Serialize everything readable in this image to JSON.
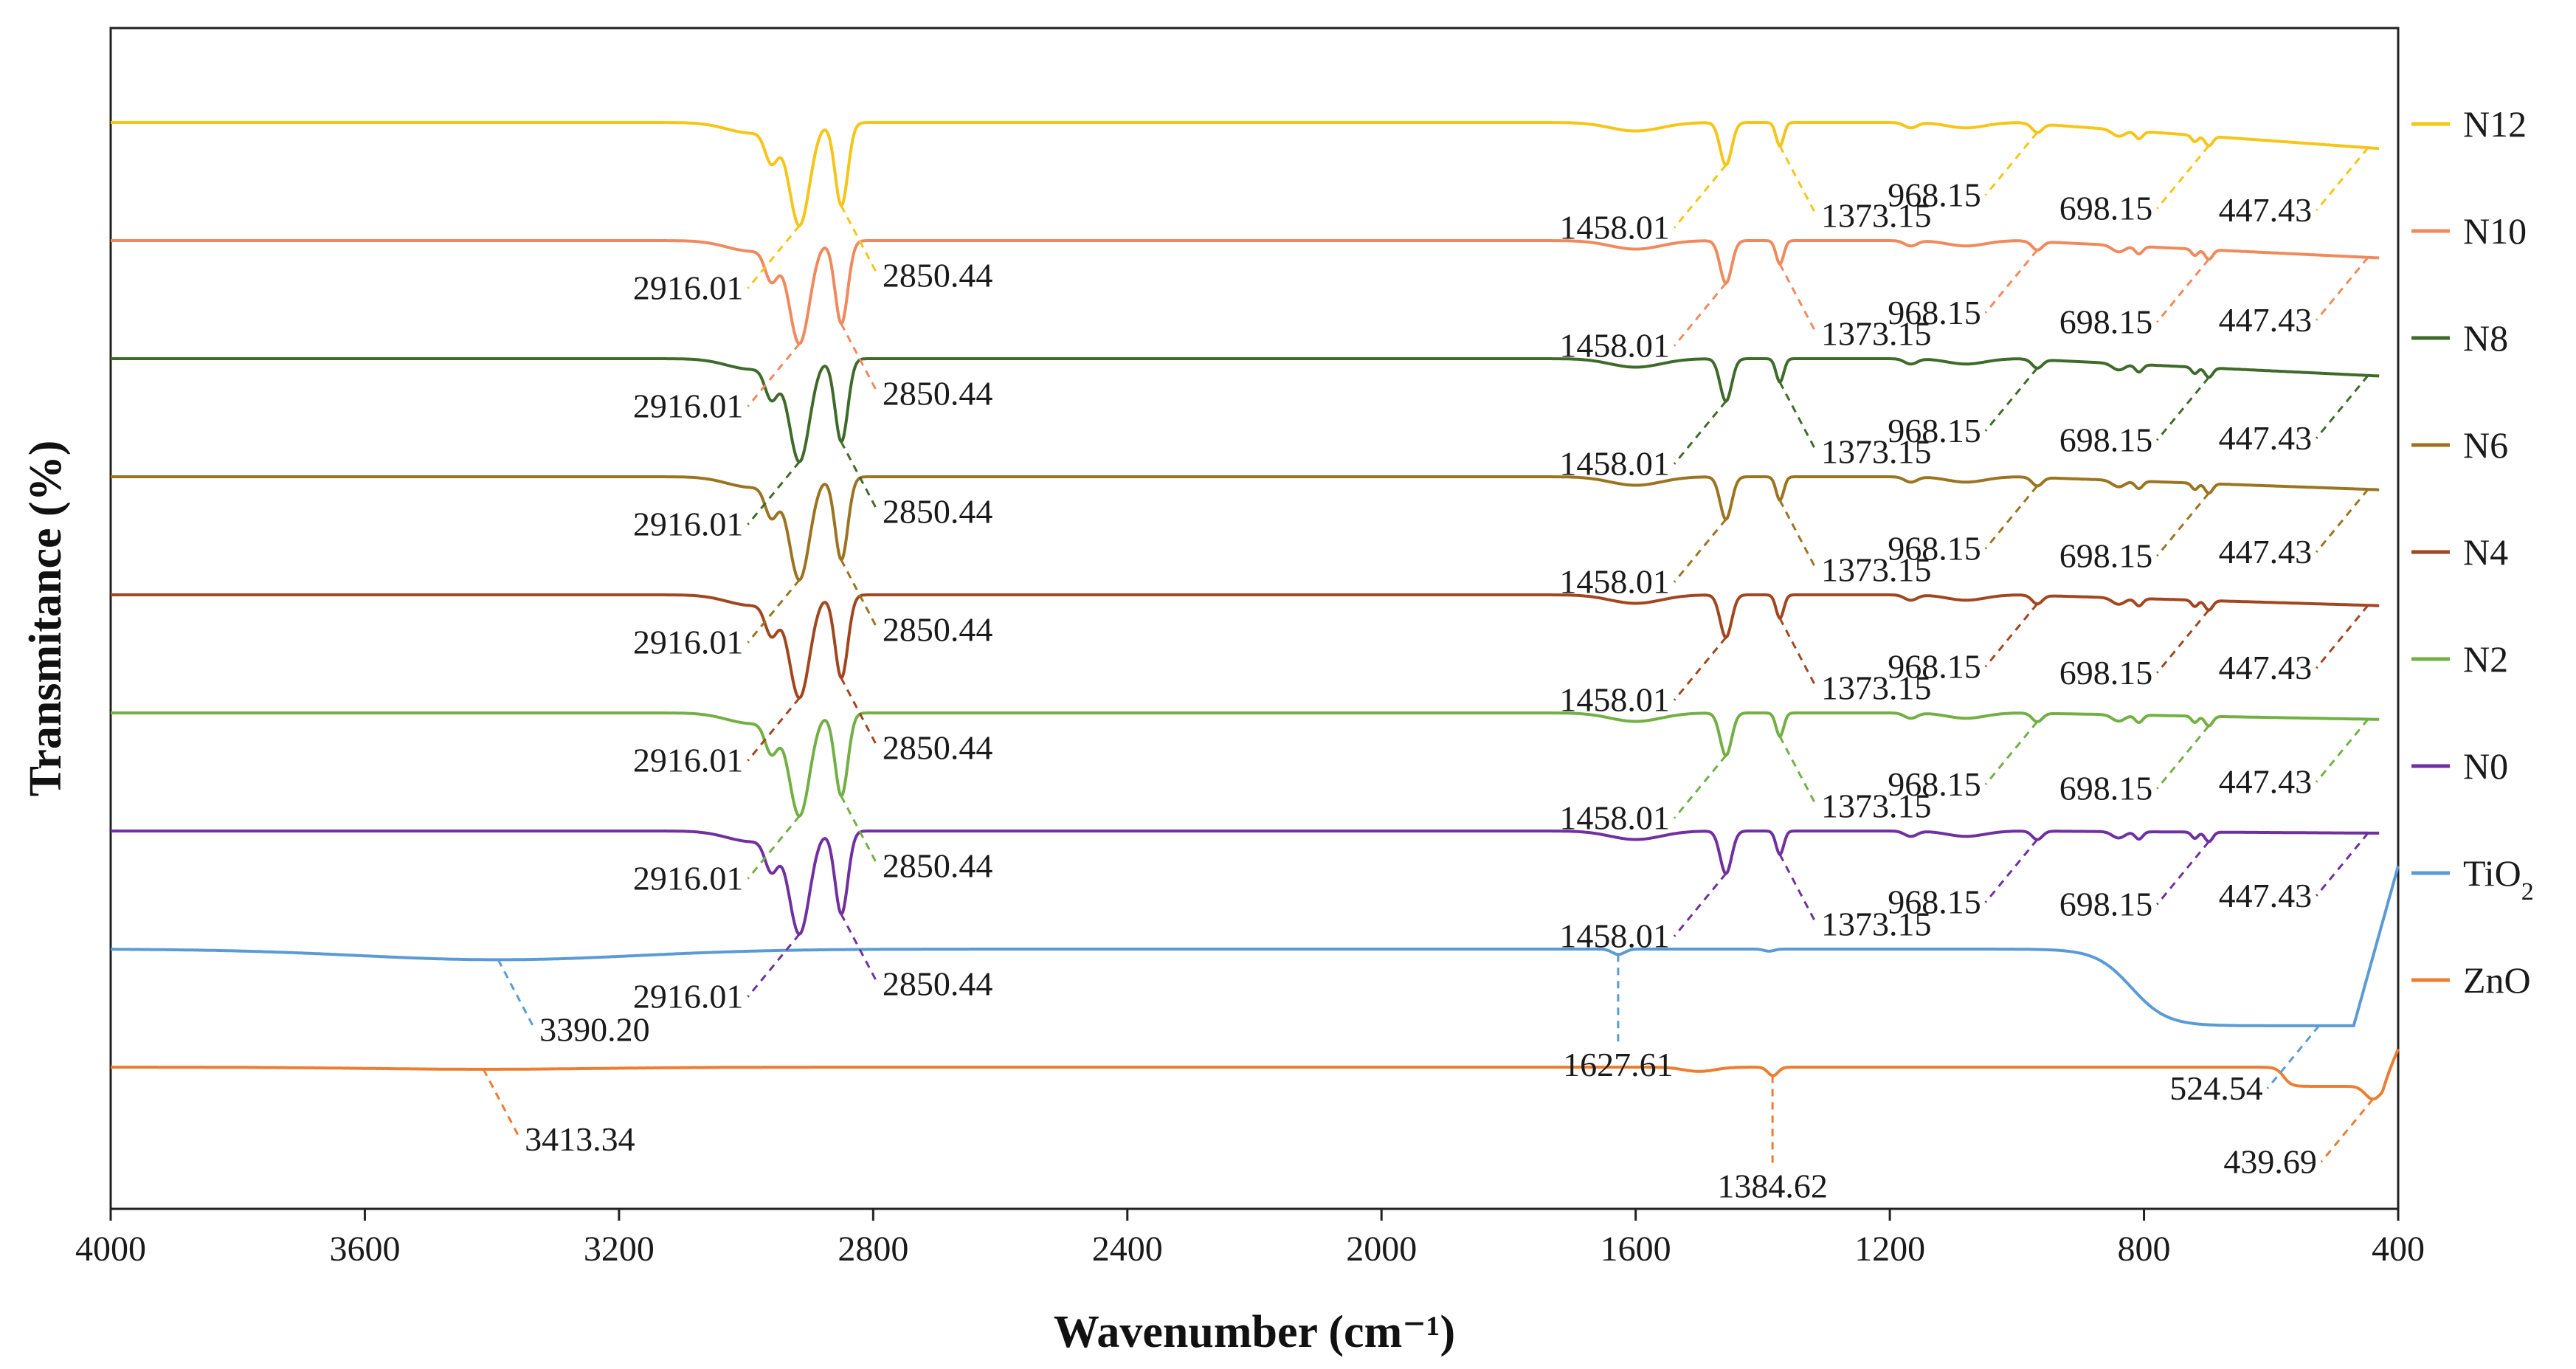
{
  "chart_data": {
    "type": "line",
    "title": "",
    "xlabel": "Wavenumber (cm⁻¹)",
    "ylabel": "Transmitance  (%)",
    "xlim": [
      4000,
      400
    ],
    "x_ticks": [
      "4000",
      "3600",
      "3200",
      "2800",
      "2400",
      "2000",
      "1600",
      "1200",
      "800",
      "400"
    ],
    "x_tick_values": [
      4000,
      3600,
      3200,
      2800,
      2400,
      2000,
      1600,
      1200,
      800,
      400
    ],
    "legend_position": "right",
    "series": [
      {
        "name": "N12",
        "color": "#F5C518",
        "offset": 9.2,
        "peaks": [
          {
            "label": "2916.01",
            "x": 2916.01,
            "side": "left"
          },
          {
            "label": "2850.44",
            "x": 2850.44,
            "side": "right"
          },
          {
            "label": "1458.01",
            "x": 1458.01,
            "side": "left"
          },
          {
            "label": "1373.15",
            "x": 1373.15,
            "side": "right"
          },
          {
            "label": "968.15",
            "x": 968.15,
            "side": "left"
          },
          {
            "label": "698.15",
            "x": 698.15,
            "side": "left"
          },
          {
            "label": "447.43",
            "x": 447.43,
            "side": "left"
          }
        ]
      },
      {
        "name": "N10",
        "color": "#F08A5D",
        "offset": 8.2,
        "peaks": [
          {
            "label": "2916.01",
            "x": 2916.01,
            "side": "left"
          },
          {
            "label": "2850.44",
            "x": 2850.44,
            "side": "right"
          },
          {
            "label": "1458.01",
            "x": 1458.01,
            "side": "left"
          },
          {
            "label": "1373.15",
            "x": 1373.15,
            "side": "right"
          },
          {
            "label": "968.15",
            "x": 968.15,
            "side": "left"
          },
          {
            "label": "698.15",
            "x": 698.15,
            "side": "left"
          },
          {
            "label": "447.43",
            "x": 447.43,
            "side": "left"
          }
        ]
      },
      {
        "name": "N8",
        "color": "#3F6B2A",
        "offset": 7.2,
        "peaks": [
          {
            "label": "2916.01",
            "x": 2916.01,
            "side": "left"
          },
          {
            "label": "2850.44",
            "x": 2850.44,
            "side": "right"
          },
          {
            "label": "1458.01",
            "x": 1458.01,
            "side": "left"
          },
          {
            "label": "1373.15",
            "x": 1373.15,
            "side": "right"
          },
          {
            "label": "968.15",
            "x": 968.15,
            "side": "left"
          },
          {
            "label": "698.15",
            "x": 698.15,
            "side": "left"
          },
          {
            "label": "447.43",
            "x": 447.43,
            "side": "left"
          }
        ]
      },
      {
        "name": "N6",
        "color": "#9B7420",
        "offset": 6.2,
        "peaks": [
          {
            "label": "2916.01",
            "x": 2916.01,
            "side": "left"
          },
          {
            "label": "2850.44",
            "x": 2850.44,
            "side": "right"
          },
          {
            "label": "1458.01",
            "x": 1458.01,
            "side": "left"
          },
          {
            "label": "1373.15",
            "x": 1373.15,
            "side": "right"
          },
          {
            "label": "968.15",
            "x": 968.15,
            "side": "left"
          },
          {
            "label": "698.15",
            "x": 698.15,
            "side": "left"
          },
          {
            "label": "447.43",
            "x": 447.43,
            "side": "left"
          }
        ]
      },
      {
        "name": "N4",
        "color": "#A2461F",
        "offset": 5.2,
        "peaks": [
          {
            "label": "2916.01",
            "x": 2916.01,
            "side": "left"
          },
          {
            "label": "2850.44",
            "x": 2850.44,
            "side": "right"
          },
          {
            "label": "1458.01",
            "x": 1458.01,
            "side": "left"
          },
          {
            "label": "1373.15",
            "x": 1373.15,
            "side": "right"
          },
          {
            "label": "968.15",
            "x": 968.15,
            "side": "left"
          },
          {
            "label": "698.15",
            "x": 698.15,
            "side": "left"
          },
          {
            "label": "447.43",
            "x": 447.43,
            "side": "left"
          }
        ]
      },
      {
        "name": "N2",
        "color": "#72B043",
        "offset": 4.2,
        "peaks": [
          {
            "label": "2916.01",
            "x": 2916.01,
            "side": "left"
          },
          {
            "label": "2850.44",
            "x": 2850.44,
            "side": "right"
          },
          {
            "label": "1458.01",
            "x": 1458.01,
            "side": "left"
          },
          {
            "label": "1373.15",
            "x": 1373.15,
            "side": "right"
          },
          {
            "label": "968.15",
            "x": 968.15,
            "side": "left"
          },
          {
            "label": "698.15",
            "x": 698.15,
            "side": "left"
          },
          {
            "label": "447.43",
            "x": 447.43,
            "side": "left"
          }
        ]
      },
      {
        "name": "N0",
        "color": "#7030A0",
        "offset": 3.2,
        "peaks": [
          {
            "label": "2916.01",
            "x": 2916.01,
            "side": "left"
          },
          {
            "label": "2850.44",
            "x": 2850.44,
            "side": "right"
          },
          {
            "label": "1458.01",
            "x": 1458.01,
            "side": "left"
          },
          {
            "label": "1373.15",
            "x": 1373.15,
            "side": "right"
          },
          {
            "label": "968.15",
            "x": 968.15,
            "side": "left"
          },
          {
            "label": "698.15",
            "x": 698.15,
            "side": "left"
          },
          {
            "label": "447.43",
            "x": 447.43,
            "side": "left"
          }
        ]
      },
      {
        "name": "TiO",
        "name_sub": "2",
        "color": "#5B9BD5",
        "offset": 2.2,
        "peaks": [
          {
            "label": "3390.20",
            "x": 3390.2,
            "side": "right"
          },
          {
            "label": "1627.61",
            "x": 1627.61,
            "side": "down"
          },
          {
            "label": "524.54",
            "x": 524.54,
            "side": "left"
          }
        ]
      },
      {
        "name": "ZnO",
        "color": "#ED7D31",
        "offset": 1.2,
        "peaks": [
          {
            "label": "3413.34",
            "x": 3413.34,
            "side": "right"
          },
          {
            "label": "1384.62",
            "x": 1384.62,
            "side": "down"
          },
          {
            "label": "439.69",
            "x": 439.69,
            "side": "left"
          }
        ]
      }
    ]
  }
}
